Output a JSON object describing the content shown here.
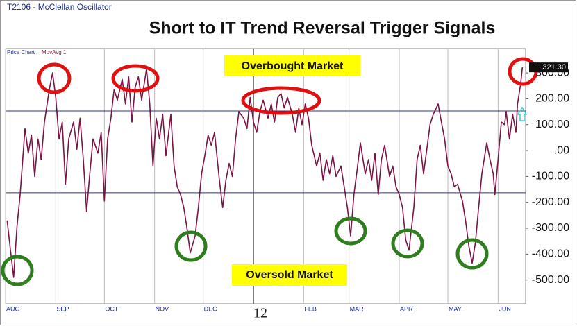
{
  "chart_data": {
    "type": "line",
    "header": "T2106 - McClellan Oscillator",
    "sub_labels": [
      "Price Chart",
      "MovAvg 1"
    ],
    "title": "Short to IT Trend Reversal Trigger Signals",
    "annotations": [
      "Overbought Market",
      "Oversold Market"
    ],
    "x": [
      1,
      3,
      5,
      7,
      9,
      12,
      14,
      16,
      18,
      20,
      22,
      24,
      27,
      29,
      31,
      33,
      35,
      37,
      39,
      42,
      44,
      46,
      48,
      50,
      52,
      54,
      57,
      59,
      61,
      63,
      65,
      67,
      69,
      72,
      74,
      76,
      78,
      80,
      82,
      84,
      87,
      89,
      91,
      93,
      95,
      97,
      99,
      102,
      104,
      106,
      108,
      110,
      112,
      114,
      117,
      119,
      121,
      123,
      125,
      127,
      129,
      132,
      134,
      136,
      138,
      140,
      142,
      144,
      147,
      149,
      151,
      153,
      155,
      157,
      159,
      162,
      164,
      166,
      168,
      170,
      172,
      174,
      177,
      179,
      181,
      183,
      185,
      187,
      189,
      192,
      194,
      196,
      198,
      200,
      202,
      204,
      207,
      209,
      211,
      213,
      215,
      217,
      219,
      222,
      224,
      226,
      228,
      230,
      232,
      234,
      237,
      239,
      241,
      243,
      245,
      247,
      249,
      252,
      254,
      256,
      258,
      260,
      262,
      264,
      267,
      269,
      271,
      273,
      275,
      277,
      279,
      282,
      284,
      286,
      288,
      290,
      292,
      294,
      297,
      299,
      301,
      302,
      304,
      306,
      308,
      309,
      311,
      313,
      315,
      316,
      318,
      319
    ],
    "series": [
      {
        "name": "MovAvg 1",
        "color": "#7b1446",
        "values": [
          -270,
          -383,
          -490,
          -300,
          -170,
          85,
          -10,
          60,
          -100,
          45,
          -35,
          110,
          235,
          300,
          205,
          45,
          110,
          -130,
          45,
          110,
          5,
          125,
          -35,
          -235,
          -90,
          45,
          -10,
          70,
          -195,
          45,
          125,
          235,
          195,
          275,
          180,
          285,
          110,
          245,
          285,
          195,
          315,
          180,
          -60,
          125,
          45,
          140,
          -20,
          140,
          -60,
          -140,
          -170,
          -220,
          -300,
          -395,
          -330,
          -220,
          -90,
          -20,
          60,
          20,
          70,
          -115,
          -220,
          -115,
          -50,
          -100,
          45,
          150,
          125,
          85,
          205,
          110,
          70,
          150,
          195,
          125,
          180,
          110,
          205,
          220,
          165,
          205,
          140,
          70,
          165,
          100,
          180,
          125,
          20,
          -60,
          -10,
          -115,
          -35,
          -90,
          -20,
          -100,
          -60,
          -140,
          -220,
          -330,
          -170,
          -75,
          30,
          -90,
          -35,
          -115,
          -10,
          -170,
          -35,
          20,
          -100,
          -60,
          -140,
          -170,
          -220,
          -345,
          -385,
          -220,
          -35,
          20,
          -90,
          5,
          100,
          140,
          180,
          110,
          45,
          -60,
          -90,
          -140,
          -130,
          -195,
          -275,
          -370,
          -435,
          -355,
          -220,
          -90,
          30,
          -35,
          -90,
          -170,
          -35,
          110,
          100,
          150,
          45,
          140,
          70,
          180,
          260,
          321.3
        ]
      }
    ],
    "current_value": {
      "value": 321.3,
      "label": "321.30"
    },
    "reference_lines": [
      {
        "value": 153,
        "color": "#2b2f9e"
      },
      {
        "value": -163,
        "color": "#2b2f9e"
      }
    ],
    "xlim": [
      0,
      321
    ],
    "xticks": [
      {
        "value": 0,
        "label": "AUG"
      },
      {
        "value": 31,
        "label": "SEP"
      },
      {
        "value": 61,
        "label": "OCT"
      },
      {
        "value": 92,
        "label": "NOV"
      },
      {
        "value": 122,
        "label": "DEC"
      },
      {
        "value": 153,
        "label": "12"
      },
      {
        "value": 184,
        "label": "FEB"
      },
      {
        "value": 212,
        "label": "MAR"
      },
      {
        "value": 243,
        "label": "APR"
      },
      {
        "value": 273,
        "label": "MAY"
      },
      {
        "value": 304,
        "label": "JUN"
      }
    ],
    "ylim": [
      -592,
      394
    ],
    "yticks": [
      {
        "value": 300,
        "label": "300.00"
      },
      {
        "value": 200,
        "label": "200.00"
      },
      {
        "value": 100,
        "label": "100.00"
      },
      {
        "value": 0,
        "label": ".00"
      },
      {
        "value": -100,
        "label": "-100.00"
      },
      {
        "value": -200,
        "label": "-200.00"
      },
      {
        "value": -300,
        "label": "-300.00"
      },
      {
        "value": -400,
        "label": "-400.00"
      },
      {
        "value": -500,
        "label": "-500.00"
      }
    ],
    "grid": true
  }
}
